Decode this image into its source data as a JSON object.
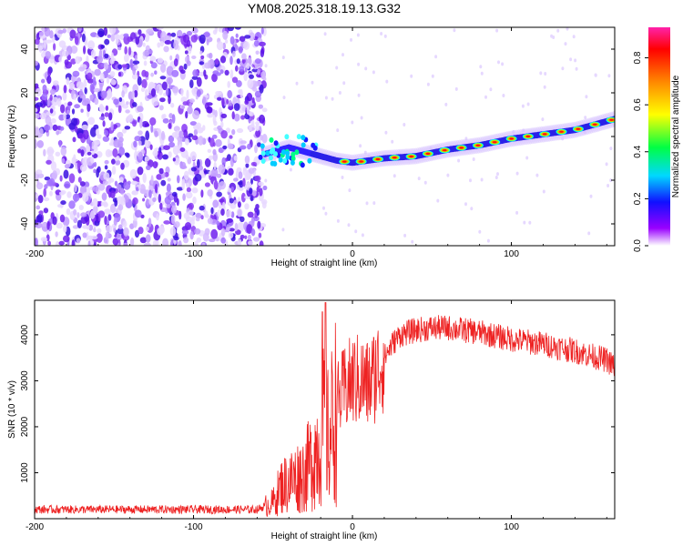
{
  "title": "YM08.2025.318.19.13.G32",
  "chart_data": [
    {
      "type": "heatmap",
      "name": "spectrogram",
      "xlabel": "Height of straight line (km)",
      "ylabel": "Frequency (Hz)",
      "xlim": [
        -200,
        165
      ],
      "ylim": [
        -50,
        50
      ],
      "xticks": [
        -200,
        -100,
        0,
        100
      ],
      "xtick_labels": [
        "-200",
        "-100",
        "0",
        "100"
      ],
      "yticks": [
        -40,
        -20,
        0,
        20,
        40
      ],
      "ytick_labels": [
        "-40",
        "-20",
        "0",
        "20",
        "40"
      ],
      "noise_region_x": [
        -200,
        -55
      ],
      "signal_track": {
        "x": [
          -55,
          -40,
          -25,
          -10,
          0,
          20,
          40,
          60,
          80,
          100,
          120,
          140,
          165
        ],
        "freq": [
          -8,
          -5,
          -8,
          -11,
          -12,
          -10,
          -9,
          -6,
          -4,
          -1,
          1,
          3,
          8
        ]
      },
      "colorbar": {
        "label": "Normalized spectral amplitude",
        "range": [
          0,
          0.93
        ],
        "ticks": [
          0.0,
          0.2,
          0.4,
          0.6,
          0.8
        ],
        "tick_labels": [
          "0.0",
          "0.2",
          "0.4",
          "0.6",
          "0.8"
        ]
      }
    },
    {
      "type": "line",
      "name": "snr",
      "xlabel": "Height of straight line (km)",
      "ylabel": "SNR (10 * v/v)",
      "xlim": [
        -200,
        165
      ],
      "ylim": [
        0,
        4750
      ],
      "xticks": [
        -200,
        -100,
        0,
        100
      ],
      "xtick_labels": [
        "-200",
        "-100",
        "0",
        "100"
      ],
      "yticks": [
        1000,
        2000,
        3000,
        4000
      ],
      "ytick_labels": [
        "1000",
        "2000",
        "3000",
        "4000"
      ],
      "color": "#ee2222",
      "envelope": {
        "x": [
          -200,
          -150,
          -100,
          -60,
          -50,
          -45,
          -40,
          -35,
          -30,
          -25,
          -20,
          -18,
          -15,
          -10,
          -5,
          0,
          5,
          10,
          15,
          20,
          25,
          30,
          35,
          40,
          50,
          60,
          80,
          100,
          120,
          140,
          150,
          160,
          165
        ],
        "y": [
          200,
          200,
          200,
          200,
          350,
          700,
          800,
          900,
          1000,
          1300,
          1800,
          2000,
          1700,
          2500,
          2800,
          3000,
          3000,
          2900,
          3200,
          3500,
          3800,
          4000,
          4050,
          4100,
          4150,
          4150,
          4050,
          3900,
          3800,
          3650,
          3550,
          3450,
          3300
        ]
      },
      "spikes": [
        {
          "x": -17,
          "y": 4700
        },
        {
          "x": -19,
          "y": 4500
        }
      ]
    }
  ]
}
